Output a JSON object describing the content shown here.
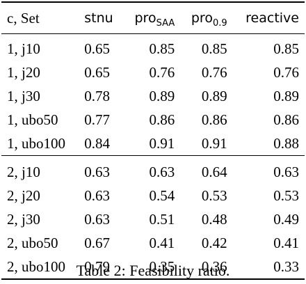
{
  "table": {
    "headers": {
      "set": "c, Set",
      "stnu": "stnu",
      "pro_saa_base": "pro",
      "pro_saa_sub": "SAA",
      "pro_09_base": "pro",
      "pro_09_sub": "0.9",
      "reactive": "reactive"
    },
    "group1": [
      {
        "set": "1, j10",
        "stnu": "0.65",
        "pro_saa": "0.85",
        "pro_09": "0.85",
        "reactive": "0.85"
      },
      {
        "set": "1, j20",
        "stnu": "0.65",
        "pro_saa": "0.76",
        "pro_09": "0.76",
        "reactive": "0.76"
      },
      {
        "set": "1, j30",
        "stnu": "0.78",
        "pro_saa": "0.89",
        "pro_09": "0.89",
        "reactive": "0.89"
      },
      {
        "set": "1, ubo50",
        "stnu": "0.77",
        "pro_saa": "0.86",
        "pro_09": "0.86",
        "reactive": "0.86"
      },
      {
        "set": "1, ubo100",
        "stnu": "0.84",
        "pro_saa": "0.91",
        "pro_09": "0.91",
        "reactive": "0.88"
      }
    ],
    "group2": [
      {
        "set": "2, j10",
        "stnu": "0.63",
        "pro_saa": "0.63",
        "pro_09": "0.64",
        "reactive": "0.63"
      },
      {
        "set": "2, j20",
        "stnu": "0.63",
        "pro_saa": "0.54",
        "pro_09": "0.53",
        "reactive": "0.53"
      },
      {
        "set": "2, j30",
        "stnu": "0.63",
        "pro_saa": "0.51",
        "pro_09": "0.48",
        "reactive": "0.49"
      },
      {
        "set": "2, ubo50",
        "stnu": "0.67",
        "pro_saa": "0.41",
        "pro_09": "0.42",
        "reactive": "0.41"
      },
      {
        "set": "2, ubo100",
        "stnu": "0.79",
        "pro_saa": "0.35",
        "pro_09": "0.36",
        "reactive": "0.33"
      }
    ]
  },
  "caption": "Table 2: Feasibility ratio."
}
